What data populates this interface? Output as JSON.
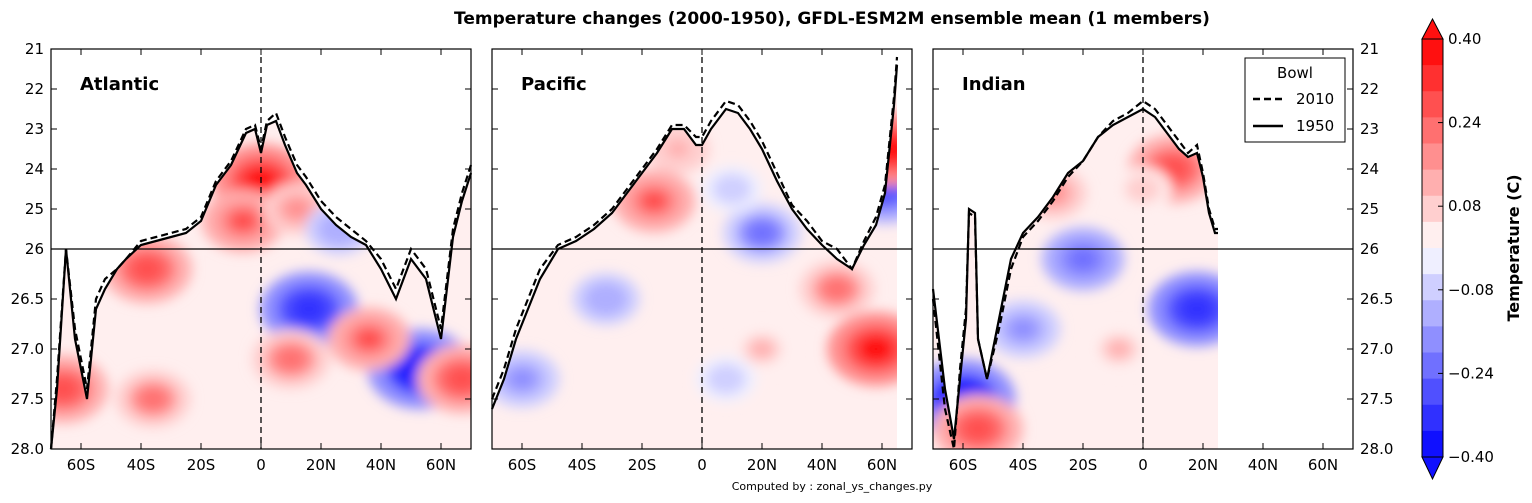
{
  "figure": {
    "title": "Temperature changes (2000-1950), GFDL-ESM2M ensemble mean (1 members)",
    "footer": "Computed by : zonal_ys_changes.py"
  },
  "chart_data": {
    "type": "heatmap",
    "variable": "Temperature change",
    "colormap": "bwr",
    "panels": [
      {
        "name": "Atlantic",
        "lat_range": [
          -70,
          70
        ],
        "ocean_lat_range": [
          -70,
          70
        ],
        "bowl_2010": [
          [
            -70,
            28.0
          ],
          [
            -68,
            27.3
          ],
          [
            -65,
            26.0
          ],
          [
            -62,
            26.8
          ],
          [
            -58,
            27.4
          ],
          [
            -55,
            26.5
          ],
          [
            -52,
            26.3
          ],
          [
            -48,
            26.2
          ],
          [
            -45,
            26.1
          ],
          [
            -40,
            25.8
          ],
          [
            -35,
            25.7
          ],
          [
            -30,
            25.6
          ],
          [
            -25,
            25.5
          ],
          [
            -20,
            25.2
          ],
          [
            -15,
            24.3
          ],
          [
            -10,
            23.8
          ],
          [
            -5,
            23.0
          ],
          [
            -2,
            22.9
          ],
          [
            0,
            23.5
          ],
          [
            2,
            22.8
          ],
          [
            5,
            22.6
          ],
          [
            8,
            23.2
          ],
          [
            12,
            23.9
          ],
          [
            15,
            24.2
          ],
          [
            20,
            24.8
          ],
          [
            25,
            25.2
          ],
          [
            30,
            25.5
          ],
          [
            35,
            25.8
          ],
          [
            40,
            26.1
          ],
          [
            45,
            26.4
          ],
          [
            50,
            26.0
          ],
          [
            55,
            26.2
          ],
          [
            60,
            26.8
          ],
          [
            64,
            25.5
          ],
          [
            67,
            24.6
          ],
          [
            70,
            23.9
          ]
        ],
        "bowl_1950": [
          [
            -70,
            28.0
          ],
          [
            -68,
            27.4
          ],
          [
            -65,
            26.0
          ],
          [
            -62,
            26.9
          ],
          [
            -58,
            27.5
          ],
          [
            -55,
            26.6
          ],
          [
            -52,
            26.4
          ],
          [
            -48,
            26.2
          ],
          [
            -45,
            26.1
          ],
          [
            -40,
            25.9
          ],
          [
            -35,
            25.8
          ],
          [
            -30,
            25.7
          ],
          [
            -25,
            25.6
          ],
          [
            -20,
            25.3
          ],
          [
            -15,
            24.4
          ],
          [
            -10,
            23.9
          ],
          [
            -5,
            23.1
          ],
          [
            -2,
            23.0
          ],
          [
            0,
            23.6
          ],
          [
            2,
            22.9
          ],
          [
            5,
            22.8
          ],
          [
            8,
            23.4
          ],
          [
            12,
            24.1
          ],
          [
            15,
            24.4
          ],
          [
            20,
            25.0
          ],
          [
            25,
            25.4
          ],
          [
            30,
            25.7
          ],
          [
            35,
            25.9
          ],
          [
            40,
            26.2
          ],
          [
            45,
            26.5
          ],
          [
            50,
            26.1
          ],
          [
            55,
            26.3
          ],
          [
            60,
            26.9
          ],
          [
            64,
            25.7
          ],
          [
            67,
            24.8
          ],
          [
            70,
            24.1
          ]
        ],
        "anomalies": [
          {
            "lat": 0,
            "rho": 24.3,
            "value": 0.35
          },
          {
            "lat": -6,
            "rho": 25.3,
            "value": 0.25
          },
          {
            "lat": 12,
            "rho": 25.0,
            "value": 0.15
          },
          {
            "lat": 16,
            "rho": 26.6,
            "value": -0.35
          },
          {
            "lat": 53,
            "rho": 27.2,
            "value": -0.4
          },
          {
            "lat": 36,
            "rho": 26.9,
            "value": 0.25
          },
          {
            "lat": 10,
            "rho": 27.1,
            "value": 0.22
          },
          {
            "lat": -66,
            "rho": 27.4,
            "value": 0.3
          },
          {
            "lat": -36,
            "rho": 27.5,
            "value": 0.2
          },
          {
            "lat": -38,
            "rho": 26.2,
            "value": 0.3
          },
          {
            "lat": 67,
            "rho": 27.3,
            "value": 0.3
          },
          {
            "lat": 26,
            "rho": 25.5,
            "value": -0.15
          }
        ]
      },
      {
        "name": "Pacific",
        "lat_range": [
          -70,
          70
        ],
        "ocean_lat_range": [
          -70,
          65
        ],
        "bowl_2010": [
          [
            -70,
            27.5
          ],
          [
            -66,
            27.2
          ],
          [
            -62,
            26.8
          ],
          [
            -58,
            26.5
          ],
          [
            -54,
            26.2
          ],
          [
            -48,
            25.9
          ],
          [
            -42,
            25.7
          ],
          [
            -36,
            25.4
          ],
          [
            -30,
            25.0
          ],
          [
            -25,
            24.5
          ],
          [
            -20,
            24.0
          ],
          [
            -15,
            23.5
          ],
          [
            -10,
            22.9
          ],
          [
            -6,
            22.9
          ],
          [
            -2,
            23.2
          ],
          [
            0,
            23.2
          ],
          [
            3,
            22.8
          ],
          [
            8,
            22.3
          ],
          [
            12,
            22.4
          ],
          [
            16,
            22.8
          ],
          [
            20,
            23.3
          ],
          [
            25,
            24.1
          ],
          [
            30,
            24.9
          ],
          [
            35,
            25.3
          ],
          [
            40,
            25.8
          ],
          [
            45,
            26.0
          ],
          [
            50,
            26.2
          ],
          [
            54,
            25.8
          ],
          [
            58,
            25.2
          ],
          [
            61,
            24.4
          ],
          [
            64,
            22.2
          ],
          [
            65,
            21.2
          ]
        ],
        "bowl_1950": [
          [
            -70,
            27.6
          ],
          [
            -66,
            27.3
          ],
          [
            -62,
            26.9
          ],
          [
            -58,
            26.6
          ],
          [
            -54,
            26.3
          ],
          [
            -48,
            26.0
          ],
          [
            -42,
            25.8
          ],
          [
            -36,
            25.5
          ],
          [
            -30,
            25.1
          ],
          [
            -25,
            24.6
          ],
          [
            -20,
            24.1
          ],
          [
            -15,
            23.6
          ],
          [
            -10,
            23.0
          ],
          [
            -6,
            23.0
          ],
          [
            -2,
            23.4
          ],
          [
            0,
            23.4
          ],
          [
            3,
            23.0
          ],
          [
            8,
            22.5
          ],
          [
            12,
            22.6
          ],
          [
            16,
            23.0
          ],
          [
            20,
            23.5
          ],
          [
            25,
            24.3
          ],
          [
            30,
            25.0
          ],
          [
            35,
            25.5
          ],
          [
            40,
            25.9
          ],
          [
            45,
            26.1
          ],
          [
            50,
            26.2
          ],
          [
            54,
            25.9
          ],
          [
            58,
            25.4
          ],
          [
            61,
            24.6
          ],
          [
            64,
            22.4
          ],
          [
            65,
            21.4
          ]
        ],
        "anomalies": [
          {
            "lat": -16,
            "rho": 24.8,
            "value": 0.25
          },
          {
            "lat": -8,
            "rho": 23.5,
            "value": 0.12
          },
          {
            "lat": 20,
            "rho": 25.6,
            "value": -0.22
          },
          {
            "lat": 10,
            "rho": 24.5,
            "value": -0.1
          },
          {
            "lat": -32,
            "rho": 26.5,
            "value": -0.15
          },
          {
            "lat": -60,
            "rho": 27.3,
            "value": -0.2
          },
          {
            "lat": 58,
            "rho": 27.0,
            "value": 0.35
          },
          {
            "lat": 45,
            "rho": 26.4,
            "value": 0.2
          },
          {
            "lat": 20,
            "rho": 27.0,
            "value": 0.1
          },
          {
            "lat": 8,
            "rho": 27.3,
            "value": -0.1
          },
          {
            "lat": 61,
            "rho": 24.5,
            "value": -0.3
          },
          {
            "lat": 63,
            "rho": 23.5,
            "value": 0.35
          }
        ]
      },
      {
        "name": "Indian",
        "lat_range": [
          -70,
          70
        ],
        "ocean_lat_range": [
          -70,
          25
        ],
        "bowl_2010": [
          [
            -70,
            26.5
          ],
          [
            -66,
            27.6
          ],
          [
            -63,
            28.0
          ],
          [
            -61,
            27.2
          ],
          [
            -59,
            26.6
          ],
          [
            -58,
            25.1
          ],
          [
            -56,
            25.2
          ],
          [
            -55,
            26.9
          ],
          [
            -52,
            27.3
          ],
          [
            -48,
            26.8
          ],
          [
            -44,
            26.2
          ],
          [
            -40,
            25.7
          ],
          [
            -35,
            25.3
          ],
          [
            -30,
            24.8
          ],
          [
            -25,
            24.2
          ],
          [
            -20,
            23.8
          ],
          [
            -15,
            23.2
          ],
          [
            -10,
            22.8
          ],
          [
            -5,
            22.6
          ],
          [
            0,
            22.3
          ],
          [
            4,
            22.5
          ],
          [
            8,
            22.9
          ],
          [
            12,
            23.3
          ],
          [
            15,
            23.6
          ],
          [
            18,
            23.4
          ],
          [
            20,
            24.1
          ],
          [
            22,
            25.0
          ],
          [
            24,
            25.5
          ],
          [
            25,
            25.5
          ]
        ],
        "bowl_1950": [
          [
            -70,
            26.4
          ],
          [
            -66,
            27.4
          ],
          [
            -63,
            27.9
          ],
          [
            -61,
            27.3
          ],
          [
            -59,
            26.7
          ],
          [
            -58,
            25.0
          ],
          [
            -56,
            25.1
          ],
          [
            -55,
            26.9
          ],
          [
            -52,
            27.3
          ],
          [
            -48,
            26.7
          ],
          [
            -44,
            26.1
          ],
          [
            -40,
            25.6
          ],
          [
            -35,
            25.2
          ],
          [
            -30,
            24.7
          ],
          [
            -25,
            24.1
          ],
          [
            -20,
            23.8
          ],
          [
            -15,
            23.2
          ],
          [
            -10,
            22.9
          ],
          [
            -5,
            22.7
          ],
          [
            0,
            22.5
          ],
          [
            4,
            22.7
          ],
          [
            8,
            23.1
          ],
          [
            12,
            23.5
          ],
          [
            15,
            23.7
          ],
          [
            18,
            23.6
          ],
          [
            20,
            24.2
          ],
          [
            22,
            25.1
          ],
          [
            24,
            25.6
          ],
          [
            25,
            25.6
          ]
        ],
        "anomalies": [
          {
            "lat": 10,
            "rho": 24.0,
            "value": 0.3
          },
          {
            "lat": -30,
            "rho": 24.6,
            "value": 0.15
          },
          {
            "lat": -20,
            "rho": 26.1,
            "value": -0.25
          },
          {
            "lat": 18,
            "rho": 26.6,
            "value": -0.35
          },
          {
            "lat": -40,
            "rho": 26.8,
            "value": -0.2
          },
          {
            "lat": -60,
            "rho": 27.5,
            "value": -0.4
          },
          {
            "lat": -55,
            "rho": 27.8,
            "value": 0.3
          },
          {
            "lat": -8,
            "rho": 27.0,
            "value": 0.1
          },
          {
            "lat": 0,
            "rho": 24.5,
            "value": 0.08
          }
        ]
      }
    ],
    "x_ticks": [
      "60S",
      "40S",
      "20S",
      "0",
      "20N",
      "40N",
      "60N"
    ],
    "x_tick_values": [
      -60,
      -40,
      -20,
      0,
      20,
      40,
      60
    ],
    "y_ticks": [
      "21",
      "22",
      "23",
      "24",
      "25",
      "26",
      "26.5",
      "27.0",
      "27.5",
      "28.0"
    ],
    "y_tick_values": [
      21,
      22,
      23,
      24,
      25,
      26,
      26.5,
      27.0,
      27.5,
      28.0
    ],
    "y_break": 26,
    "legend": {
      "title": "Bowl",
      "entries": [
        {
          "label": "2010",
          "style": "dashed"
        },
        {
          "label": "1950",
          "style": "solid"
        }
      ],
      "placement": "top-right of Indian panel"
    },
    "colorbar": {
      "label": "Temperature (C)",
      "ticks": [
        "0.40",
        "0.24",
        "0.08",
        "−0.08",
        "−0.24",
        "−0.40"
      ],
      "tick_values": [
        0.4,
        0.24,
        0.08,
        -0.08,
        -0.24,
        -0.4
      ],
      "range": [
        -0.4,
        0.4
      ],
      "levels": 16
    }
  }
}
